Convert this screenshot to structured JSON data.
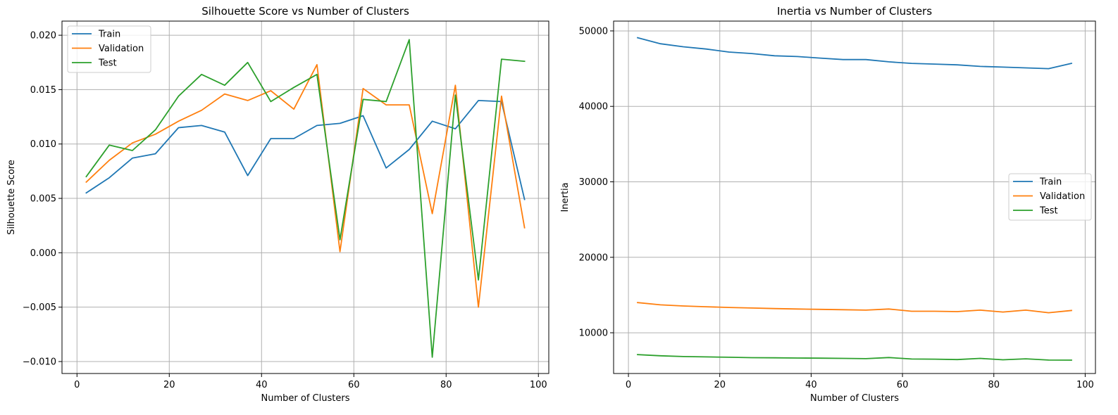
{
  "chart_data": [
    {
      "type": "line",
      "title": "Silhouette Score vs Number of Clusters",
      "xlabel": "Number of Clusters",
      "ylabel": "Silhouette Score",
      "xlim": [
        -3.25,
        102.25
      ],
      "ylim": [
        -0.0111,
        0.0213
      ],
      "xticks": [
        0,
        20,
        40,
        60,
        80,
        100
      ],
      "xtick_labels": [
        "0",
        "20",
        "40",
        "60",
        "80",
        "100"
      ],
      "yticks": [
        -0.01,
        -0.005,
        0.0,
        0.005,
        0.01,
        0.015,
        0.02
      ],
      "ytick_labels": [
        "−0.010",
        "−0.005",
        "0.000",
        "0.005",
        "0.010",
        "0.015",
        "0.020"
      ],
      "grid": true,
      "legend_position": "upper-left",
      "x": [
        2,
        7,
        12,
        17,
        22,
        27,
        32,
        37,
        42,
        47,
        52,
        57,
        62,
        67,
        72,
        77,
        82,
        87,
        92,
        97
      ],
      "series": [
        {
          "name": "Train",
          "color": "#1f77b4",
          "values": [
            0.0055,
            0.0069,
            0.0087,
            0.0091,
            0.0115,
            0.0117,
            0.0111,
            0.0071,
            0.0105,
            0.0105,
            0.0117,
            0.0119,
            0.0126,
            0.0078,
            0.0095,
            0.0121,
            0.0114,
            0.014,
            0.0139,
            0.0049
          ]
        },
        {
          "name": "Validation",
          "color": "#ff7f0e",
          "values": [
            0.0065,
            0.0085,
            0.0101,
            0.0109,
            0.0121,
            0.0131,
            0.0146,
            0.014,
            0.0149,
            0.0132,
            0.0173,
            0.0001,
            0.0151,
            0.0136,
            0.0136,
            0.0036,
            0.0154,
            -0.005,
            0.0144,
            0.0023
          ]
        },
        {
          "name": "Test",
          "color": "#2ca02c",
          "values": [
            0.007,
            0.0099,
            0.0094,
            0.0113,
            0.0144,
            0.0164,
            0.0154,
            0.0175,
            0.0139,
            0.0152,
            0.0164,
            0.0012,
            0.0141,
            0.0139,
            0.0196,
            -0.0096,
            0.0145,
            -0.0025,
            0.0178,
            0.0176
          ]
        }
      ]
    },
    {
      "type": "line",
      "title": "Inertia vs Number of Clusters",
      "xlabel": "Number of Clusters",
      "ylabel": "Inertia",
      "xlim": [
        -3.25,
        102.25
      ],
      "ylim": [
        4600,
        51300
      ],
      "xticks": [
        0,
        20,
        40,
        60,
        80,
        100
      ],
      "xtick_labels": [
        "0",
        "20",
        "40",
        "60",
        "80",
        "100"
      ],
      "yticks": [
        10000,
        20000,
        30000,
        40000,
        50000
      ],
      "ytick_labels": [
        "10000",
        "20000",
        "30000",
        "40000",
        "50000"
      ],
      "grid": true,
      "legend_position": "center-right",
      "x": [
        2,
        7,
        12,
        17,
        22,
        27,
        32,
        37,
        42,
        47,
        52,
        57,
        62,
        67,
        72,
        77,
        82,
        87,
        92,
        97
      ],
      "series": [
        {
          "name": "Train",
          "color": "#1f77b4",
          "values": [
            49100,
            48300,
            47900,
            47600,
            47200,
            47000,
            46700,
            46600,
            46400,
            46200,
            46200,
            45900,
            45700,
            45600,
            45500,
            45300,
            45200,
            45100,
            45000,
            45700
          ]
        },
        {
          "name": "Validation",
          "color": "#ff7f0e",
          "values": [
            14000,
            13700,
            13550,
            13450,
            13350,
            13280,
            13200,
            13150,
            13100,
            13050,
            13000,
            13150,
            12850,
            12850,
            12800,
            13000,
            12750,
            13000,
            12650,
            12950
          ]
        },
        {
          "name": "Test",
          "color": "#2ca02c",
          "values": [
            7100,
            6950,
            6850,
            6800,
            6750,
            6700,
            6680,
            6650,
            6630,
            6600,
            6570,
            6720,
            6520,
            6500,
            6450,
            6600,
            6420,
            6550,
            6380,
            6370
          ]
        }
      ]
    }
  ]
}
